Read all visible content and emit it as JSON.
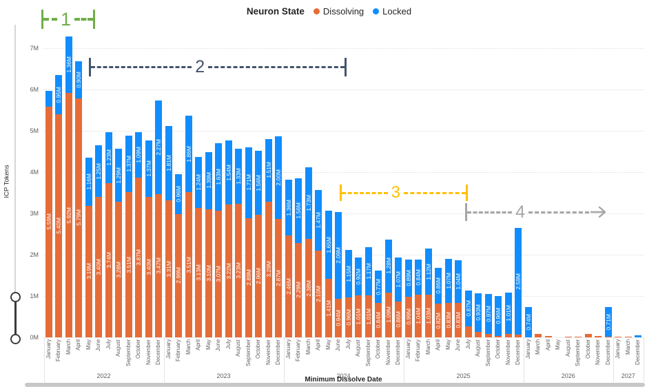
{
  "legend": {
    "title": "Neuron State",
    "series": [
      {
        "name": "Dissolving",
        "color": "#E66C37"
      },
      {
        "name": "Locked",
        "color": "#118DFF"
      }
    ]
  },
  "annotations": [
    {
      "label": "1",
      "color": "#70AD47"
    },
    {
      "label": "2",
      "color": "#44546A"
    },
    {
      "label": "3",
      "color": "#FFC000"
    },
    {
      "label": "4",
      "color": "#A6A6A6"
    }
  ],
  "chart_data": {
    "type": "bar",
    "stacked": true,
    "title": "Neuron State",
    "xlabel": "Minimum Dissolve Date",
    "ylabel": "ICP Tokens",
    "ylim": [
      0,
      7.3
    ],
    "grid": "dotted-horizontal",
    "legend_position": "top-center",
    "y_ticks": [
      "0M",
      "1M",
      "2M",
      "3M",
      "4M",
      "5M",
      "6M",
      "7M"
    ],
    "series_names": [
      "Dissolving",
      "Locked"
    ],
    "colors": {
      "dissolving": "#E66C37",
      "locked": "#118DFF"
    },
    "label_rule": "segment labels shown in millions with two decimals when value >= 0.7M",
    "bars_format": [
      "month",
      "year",
      "dissolving_M",
      "locked_M"
    ],
    "bars": [
      [
        "January",
        "2022",
        5.59,
        0.38
      ],
      [
        "February",
        "2022",
        5.4,
        0.95
      ],
      [
        "March",
        "2022",
        5.92,
        1.36
      ],
      [
        "April",
        "2022",
        5.79,
        0.9
      ],
      [
        "May",
        "2022",
        3.19,
        1.16
      ],
      [
        "June",
        "2022",
        3.4,
        1.25
      ],
      [
        "July",
        "2022",
        3.74,
        1.23
      ],
      [
        "August",
        "2022",
        3.28,
        1.29
      ],
      [
        "September",
        "2022",
        3.51,
        1.37
      ],
      [
        "October",
        "2022",
        3.87,
        1.09
      ],
      [
        "November",
        "2022",
        3.4,
        1.37
      ],
      [
        "December",
        "2022",
        3.47,
        2.27
      ],
      [
        "January",
        "2023",
        3.31,
        1.81
      ],
      [
        "February",
        "2023",
        2.99,
        0.96
      ],
      [
        "March",
        "2023",
        3.51,
        1.86
      ],
      [
        "April",
        "2023",
        3.13,
        1.24
      ],
      [
        "May",
        "2023",
        3.1,
        1.39
      ],
      [
        "June",
        "2023",
        3.07,
        1.63
      ],
      [
        "July",
        "2023",
        3.22,
        1.54
      ],
      [
        "August",
        "2023",
        3.23,
        1.33
      ],
      [
        "September",
        "2023",
        2.89,
        1.71
      ],
      [
        "October",
        "2023",
        2.96,
        1.56
      ],
      [
        "November",
        "2023",
        3.29,
        1.51
      ],
      [
        "December",
        "2023",
        2.87,
        2.0
      ],
      [
        "January",
        "2024",
        2.46,
        1.36
      ],
      [
        "February",
        "2024",
        2.29,
        1.56
      ],
      [
        "March",
        "2024",
        2.38,
        1.73
      ],
      [
        "April",
        "2024",
        2.1,
        1.47
      ],
      [
        "May",
        "2024",
        1.41,
        1.65
      ],
      [
        "June",
        "2024",
        0.94,
        2.09
      ],
      [
        "July",
        "2024",
        0.96,
        1.15
      ],
      [
        "August",
        "2024",
        1.01,
        0.92
      ],
      [
        "September",
        "2024",
        1.01,
        1.17
      ],
      [
        "October",
        "2024",
        0.84,
        0.77
      ],
      [
        "November",
        "2024",
        1.09,
        1.28
      ],
      [
        "December",
        "2024",
        0.86,
        1.07
      ],
      [
        "January",
        "2025",
        0.99,
        0.89
      ],
      [
        "February",
        "2025",
        1.04,
        0.84
      ],
      [
        "March",
        "2025",
        1.03,
        1.12
      ],
      [
        "April",
        "2025",
        0.82,
        0.86
      ],
      [
        "May",
        "2025",
        0.83,
        1.07
      ],
      [
        "June",
        "2025",
        0.83,
        1.04
      ],
      [
        "July",
        "2025",
        0.27,
        0.87
      ],
      [
        "August",
        "2025",
        0.14,
        0.93
      ],
      [
        "September",
        "2025",
        0.08,
        0.97
      ],
      [
        "October",
        "2025",
        0.04,
        0.96
      ],
      [
        "November",
        "2025",
        0.08,
        1.01
      ],
      [
        "December",
        "2025",
        0.06,
        2.59
      ],
      [
        "January",
        "2026",
        0.0,
        0.74
      ],
      [
        "March",
        "2026",
        0.08,
        0.0
      ],
      [
        "April",
        "2026",
        0.03,
        0.0
      ],
      [
        "May",
        "2026",
        0.0,
        0.0
      ],
      [
        "August",
        "2026",
        0.01,
        0.0
      ],
      [
        "September",
        "2026",
        0.02,
        0.0
      ],
      [
        "October",
        "2026",
        0.08,
        0.0
      ],
      [
        "November",
        "2026",
        0.03,
        0.0
      ],
      [
        "December",
        "2026",
        0.02,
        0.71
      ],
      [
        "January",
        "2027",
        0.01,
        0.0
      ],
      [
        "March",
        "2027",
        0.02,
        0.0
      ],
      [
        "December",
        "2027",
        0.0,
        0.05
      ]
    ]
  }
}
